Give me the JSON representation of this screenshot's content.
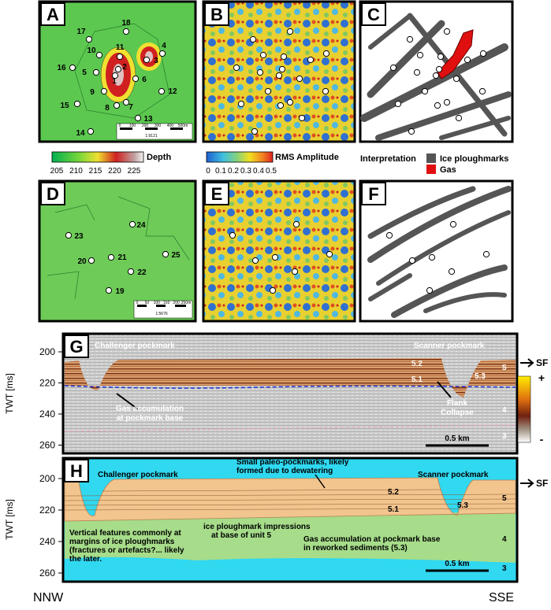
{
  "panels": {
    "A": {
      "label": "A",
      "points": [
        "17",
        "18",
        "10",
        "11",
        "4",
        "3",
        "16",
        "5",
        "2",
        "1",
        "6",
        "9",
        "12",
        "15",
        "8",
        "7",
        "13",
        "14"
      ],
      "scale_ticks": [
        "0",
        "100",
        "200",
        "300",
        "400",
        "500m"
      ],
      "scale_ratio": "1:9121"
    },
    "B": {
      "label": "B"
    },
    "C": {
      "label": "C"
    },
    "D": {
      "label": "D",
      "points": [
        "24",
        "23",
        "21",
        "25",
        "20",
        "22",
        "19"
      ],
      "scale_ticks": [
        "0",
        "50",
        "100",
        "150",
        "200",
        "250m"
      ],
      "scale_ratio": "1:5676"
    },
    "E": {
      "label": "E"
    },
    "F": {
      "label": "F"
    }
  },
  "colorbars": {
    "depth": {
      "title": "Depth",
      "ticks": [
        "205",
        "210",
        "215",
        "220",
        "225"
      ]
    },
    "rms": {
      "title": "RMS Amplitude",
      "ticks": [
        "0",
        "0.1",
        "0.2",
        "0.3",
        "0.4",
        "0.5"
      ]
    }
  },
  "interpretation": {
    "title": "Interpretation",
    "items": [
      "Ice ploughmarks",
      "Gas"
    ]
  },
  "profile_g": {
    "label": "G",
    "axis_title": "TWT [ms]",
    "ticks": [
      "200",
      "220",
      "240",
      "260"
    ],
    "left_title": "Challenger pockmark",
    "right_title": "Scanner pockmark",
    "units": [
      "5.2",
      "5.1",
      "5.3",
      "5",
      "4",
      "3"
    ],
    "gas_note": [
      "Gas accumulation",
      "at pockmark base"
    ],
    "flank_note": [
      "Flank",
      "Collapse"
    ],
    "scale": "0.5 km",
    "sf": "SF",
    "amp_plus": "+",
    "amp_minus": "-"
  },
  "profile_h": {
    "label": "H",
    "axis_title": "TWT [ms]",
    "ticks": [
      "200",
      "220",
      "240",
      "260"
    ],
    "left_title": "Challenger pockmark",
    "right_title": "Scanner pockmark",
    "paleo_note": [
      "Small paleo-pockmarks, likely",
      "formed due to dewatering"
    ],
    "units": [
      "5.2",
      "5.1",
      "5.3",
      "5",
      "4",
      "3"
    ],
    "vertical_note": [
      "Vertical features commonly at",
      "margins of ice ploughmarks",
      "(fractures or artefacts?... likely",
      "the later."
    ],
    "ice_note": [
      "ice ploughmark impressions",
      "at base of unit 5"
    ],
    "gas_note": [
      "Gas accumulation at pockmark base",
      "in reworked sediments (5.3)"
    ],
    "scale": "0.5 km",
    "sf": "SF"
  },
  "directions": {
    "left": "NNW",
    "right": "SSE"
  }
}
